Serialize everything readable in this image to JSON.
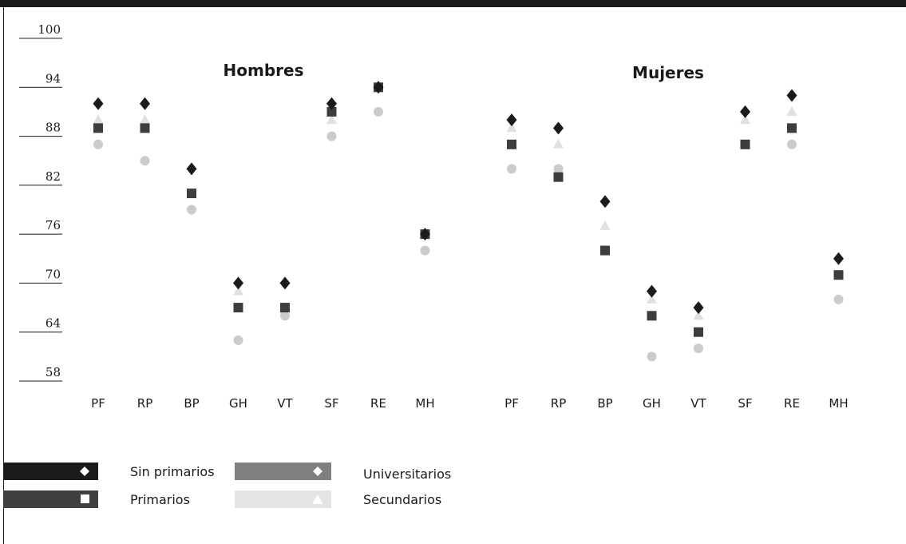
{
  "chart_data": {
    "type": "scatter",
    "yticks": [
      100,
      94,
      88,
      82,
      76,
      70,
      64,
      58
    ],
    "ylim": [
      58,
      100
    ],
    "categories": [
      "PF",
      "RP",
      "BP",
      "GH",
      "VT",
      "SF",
      "RE",
      "MH"
    ],
    "legend_position": "bottom-left",
    "series_styles": [
      {
        "name": "Sin primarios",
        "marker": "diamond",
        "color": "#1c1a1b",
        "bar_color": "#1c1a1b"
      },
      {
        "name": "Primarios",
        "marker": "square",
        "color": "#3d3d3d",
        "bar_color": "#404040"
      },
      {
        "name": "Universitarios",
        "marker": "diamond",
        "color": "#8a8a8a",
        "bar_color": "#7f7f7f"
      },
      {
        "name": "Secundarios",
        "marker": "triangle",
        "color": "#dedede",
        "bar_color": "#e4e4e4"
      }
    ],
    "panels": [
      {
        "title": "Hombres",
        "series": [
          {
            "name": "Sin primarios",
            "values": [
              92,
              92,
              84,
              70,
              70,
              92,
              94,
              76
            ]
          },
          {
            "name": "Primarios",
            "values": [
              89,
              89,
              81,
              67,
              67,
              91,
              94,
              76
            ]
          },
          {
            "name": "Universitarios",
            "values": [
              87,
              85,
              79,
              63,
              66,
              88,
              91,
              74
            ]
          },
          {
            "name": "Secundarios",
            "values": [
              90,
              90,
              81,
              69,
              67,
              90,
              94,
              76
            ]
          }
        ]
      },
      {
        "title": "Mujeres",
        "series": [
          {
            "name": "Sin primarios",
            "values": [
              90,
              89,
              80,
              69,
              67,
              91,
              93,
              73
            ]
          },
          {
            "name": "Primarios",
            "values": [
              87,
              83,
              74,
              66,
              64,
              87,
              89,
              71
            ]
          },
          {
            "name": "Universitarios",
            "values": [
              84,
              84,
              74,
              61,
              62,
              87,
              87,
              68
            ]
          },
          {
            "name": "Secundarios",
            "values": [
              89,
              87,
              77,
              68,
              66,
              90,
              91,
              71
            ]
          }
        ]
      }
    ]
  }
}
